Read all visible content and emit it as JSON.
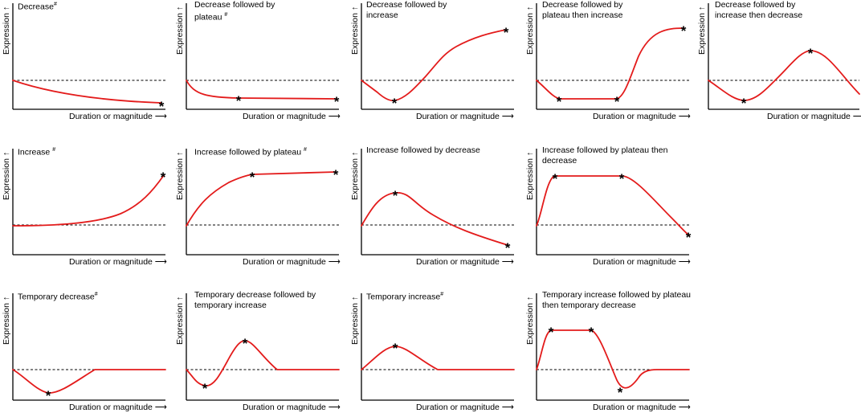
{
  "figure": {
    "y_axis_label": "Expression ↑",
    "x_axis_label": "Duration or magnitude ⟶",
    "colors": {
      "curve": "#e31b1b",
      "axis": "#000000",
      "baseline": "#000000"
    },
    "panels": [
      {
        "id": "p1",
        "title": "Decrease",
        "mark": "#"
      },
      {
        "id": "p2",
        "title": "Decrease followed by\nplateau ",
        "mark": "#"
      },
      {
        "id": "p3",
        "title": "Decrease followed by\nincrease",
        "mark": ""
      },
      {
        "id": "p4",
        "title": "Decrease followed by\nplateau then increase",
        "mark": ""
      },
      {
        "id": "p5",
        "title": "Decrease followed by\nincrease then decrease",
        "mark": ""
      },
      {
        "id": "p6",
        "title": "Increase ",
        "mark": "#"
      },
      {
        "id": "p7",
        "title": "Increase followed by plateau ",
        "mark": "#"
      },
      {
        "id": "p8",
        "title": "Increase followed by decrease",
        "mark": ""
      },
      {
        "id": "p9",
        "title": "Increase followed by plateau then\ndecrease",
        "mark": ""
      },
      {
        "id": "p10",
        "title": "Temporary decrease",
        "mark": "#"
      },
      {
        "id": "p11",
        "title": "Temporary decrease followed by\ntemporary increase",
        "mark": ""
      },
      {
        "id": "p12",
        "title": "Temporary increase",
        "mark": "#"
      },
      {
        "id": "p13",
        "title": "Temporary increase followed by plateau\nthen temporary decrease",
        "mark": ""
      }
    ]
  }
}
